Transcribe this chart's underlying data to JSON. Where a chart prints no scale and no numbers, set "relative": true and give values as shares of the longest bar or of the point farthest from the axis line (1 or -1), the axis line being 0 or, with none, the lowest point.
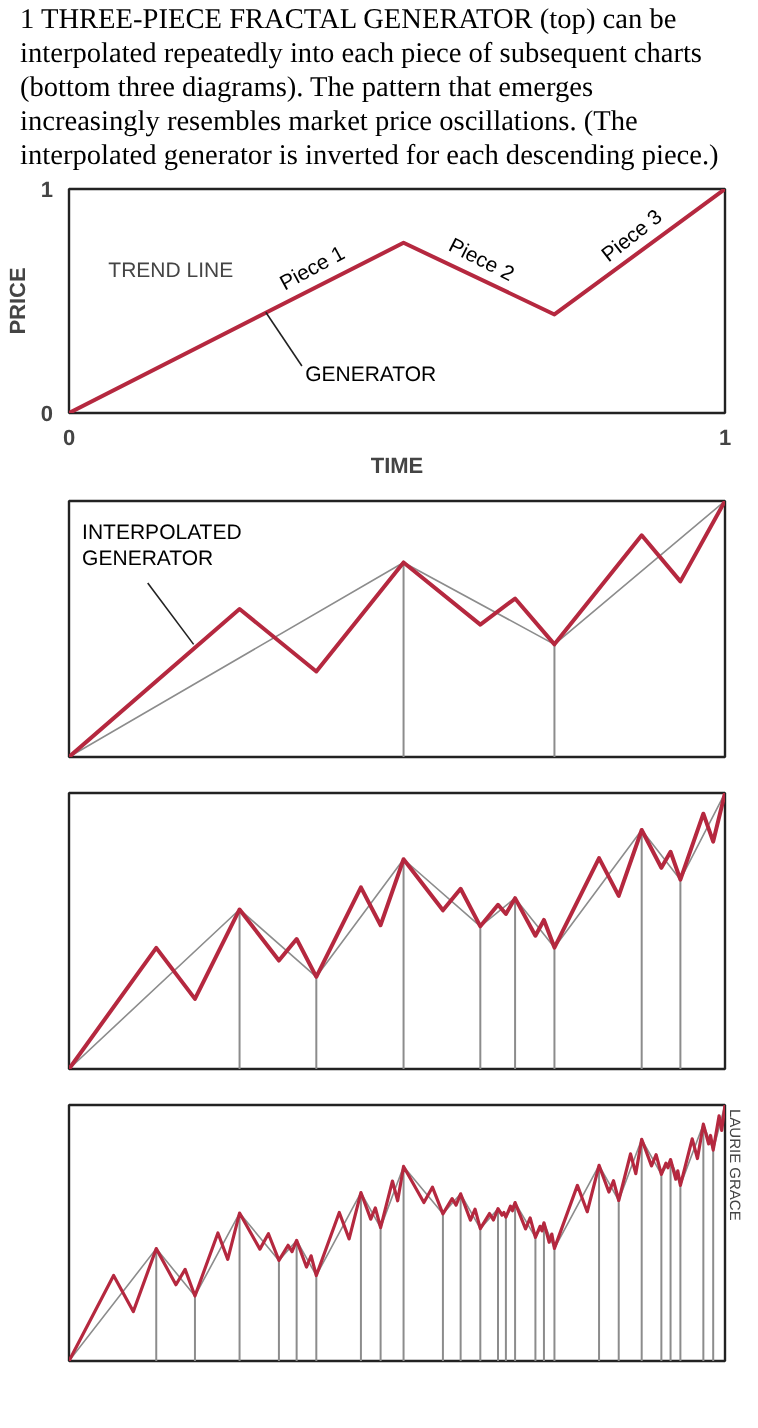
{
  "chart_data": [
    {
      "type": "line",
      "title": "1 THREE-PIECE FRACTAL GENERATOR (top) can be interpolated repeatedly into each piece of subsequent charts (bottom three diagrams). The pattern that emerges increasingly resembles market price oscillations. (The interpolated generator is inverted for each descending piece.)",
      "xlabel": "TIME",
      "ylabel": "PRICE",
      "x": [
        0,
        0.51,
        0.74,
        1
      ],
      "series": [
        {
          "color": "#b5283f",
          "values": [
            0,
            0.76,
            0.44,
            1
          ]
        }
      ],
      "xlim": [
        0,
        1
      ],
      "ylim": [
        0,
        1
      ],
      "xticks": [
        0,
        1
      ],
      "yticks": [
        0,
        1
      ],
      "annotations": [
        "TREND LINE",
        {
          "text": "GENERATOR",
          "x": 0.3,
          "y": 0.45
        },
        {
          "text": "Piece 1",
          "x": 0.38,
          "y": 0.57
        },
        {
          "text": "Piece 2",
          "x": 0.62,
          "y": 0.607
        },
        {
          "text": "Piece 3",
          "x": 0.87,
          "y": 0.72
        }
      ]
    },
    {
      "type": "line",
      "relative": true,
      "tick_labels": false,
      "xlim": [
        0,
        1
      ],
      "series": [
        {
          "color": "#b5283f",
          "x": [
            0,
            0.26,
            0.377,
            0.51,
            0.627,
            0.68,
            0.74,
            0.873,
            0.932,
            1
          ],
          "values": [
            0,
            0.578,
            0.334,
            0.76,
            0.517,
            0.619,
            0.44,
            0.866,
            0.686,
            1
          ]
        },
        {
          "color": "#8c8c8c",
          "x": [
            0,
            0.51,
            0.74,
            1
          ],
          "values": [
            0,
            0.76,
            0.44,
            1
          ]
        }
      ],
      "ref_lines": [
        {
          "axis": "x",
          "value": 0.51,
          "color": "#8c8c8c"
        },
        {
          "axis": "x",
          "value": 0.74,
          "color": "#8c8c8c"
        }
      ],
      "annotations": [
        {
          "text": "INTERPOLATED\nGENERATOR",
          "x": 0.19,
          "y": 0.44
        }
      ]
    },
    {
      "type": "line",
      "relative": true,
      "tick_labels": false,
      "xlim": [
        0,
        1
      ],
      "series": [
        {
          "color": "#b5283f",
          "x": [
            0,
            0.133,
            0.192,
            0.26,
            0.32,
            0.347,
            0.377,
            0.445,
            0.475,
            0.51,
            0.57,
            0.597,
            0.627,
            0.654,
            0.666,
            0.68,
            0.711,
            0.724,
            0.74,
            0.808,
            0.838,
            0.873,
            0.903,
            0.917,
            0.932,
            0.967,
            0.982,
            1
          ],
          "values": [
            0,
            0.439,
            0.254,
            0.578,
            0.393,
            0.471,
            0.334,
            0.658,
            0.521,
            0.76,
            0.575,
            0.653,
            0.517,
            0.595,
            0.562,
            0.619,
            0.483,
            0.54,
            0.44,
            0.764,
            0.627,
            0.866,
            0.729,
            0.787,
            0.686,
            0.925,
            0.824,
            1
          ]
        },
        {
          "color": "#8c8c8c",
          "x": [
            0,
            0.26,
            0.377,
            0.51,
            0.627,
            0.68,
            0.74,
            0.873,
            0.932,
            1
          ],
          "values": [
            0,
            0.578,
            0.334,
            0.76,
            0.517,
            0.619,
            0.44,
            0.866,
            0.686,
            1
          ]
        }
      ],
      "ref_lines": [
        {
          "axis": "x",
          "value": 0.26,
          "color": "#8c8c8c"
        },
        {
          "axis": "x",
          "value": 0.377,
          "color": "#8c8c8c"
        },
        {
          "axis": "x",
          "value": 0.51,
          "color": "#8c8c8c"
        },
        {
          "axis": "x",
          "value": 0.627,
          "color": "#8c8c8c"
        },
        {
          "axis": "x",
          "value": 0.68,
          "color": "#8c8c8c"
        },
        {
          "axis": "x",
          "value": 0.74,
          "color": "#8c8c8c"
        },
        {
          "axis": "x",
          "value": 0.873,
          "color": "#8c8c8c"
        },
        {
          "axis": "x",
          "value": 0.932,
          "color": "#8c8c8c"
        }
      ]
    },
    {
      "type": "line",
      "relative": true,
      "tick_labels": false,
      "xlim": [
        0,
        1
      ],
      "series": [
        {
          "color": "#b5283f",
          "x": [
            0,
            0.068,
            0.098,
            0.133,
            0.163,
            0.177,
            0.192,
            0.227,
            0.242,
            0.26,
            0.291,
            0.304,
            0.32,
            0.334,
            0.34,
            0.347,
            0.362,
            0.369,
            0.377,
            0.412,
            0.427,
            0.445,
            0.46,
            0.467,
            0.475,
            0.493,
            0.501,
            0.51,
            0.541,
            0.554,
            0.57,
            0.584,
            0.59,
            0.597,
            0.612,
            0.619,
            0.627,
            0.641,
            0.647,
            0.654,
            0.66,
            0.663,
            0.666,
            0.673,
            0.676,
            0.68,
            0.696,
            0.703,
            0.711,
            0.718,
            0.721,
            0.724,
            0.732,
            0.736,
            0.74,
            0.775,
            0.79,
            0.808,
            0.823,
            0.83,
            0.838,
            0.856,
            0.864,
            0.873,
            0.888,
            0.895,
            0.903,
            0.91,
            0.913,
            0.917,
            0.925,
            0.928,
            0.932,
            0.95,
            0.958,
            0.967,
            0.975,
            0.978,
            0.982,
            0.991,
            0.995,
            1
          ],
          "values": [
            0,
            0.334,
            0.193,
            0.439,
            0.298,
            0.358,
            0.254,
            0.5,
            0.397,
            0.578,
            0.437,
            0.497,
            0.393,
            0.452,
            0.427,
            0.471,
            0.367,
            0.411,
            0.334,
            0.58,
            0.477,
            0.658,
            0.554,
            0.598,
            0.521,
            0.703,
            0.626,
            0.76,
            0.619,
            0.679,
            0.575,
            0.634,
            0.609,
            0.653,
            0.55,
            0.593,
            0.517,
            0.576,
            0.551,
            0.595,
            0.57,
            0.58,
            0.562,
            0.605,
            0.587,
            0.619,
            0.516,
            0.559,
            0.483,
            0.526,
            0.508,
            0.54,
            0.464,
            0.496,
            0.44,
            0.686,
            0.583,
            0.764,
            0.66,
            0.704,
            0.627,
            0.809,
            0.732,
            0.866,
            0.762,
            0.806,
            0.729,
            0.773,
            0.755,
            0.787,
            0.71,
            0.743,
            0.686,
            0.868,
            0.791,
            0.925,
            0.848,
            0.881,
            0.824,
            0.958,
            0.901,
            1
          ]
        },
        {
          "color": "#8c8c8c",
          "x": [
            0,
            0.133,
            0.192,
            0.26,
            0.32,
            0.347,
            0.377,
            0.445,
            0.475,
            0.51,
            0.57,
            0.597,
            0.627,
            0.654,
            0.666,
            0.68,
            0.711,
            0.724,
            0.74,
            0.808,
            0.838,
            0.873,
            0.903,
            0.917,
            0.932,
            0.967,
            0.982,
            1
          ],
          "values": [
            0,
            0.439,
            0.254,
            0.578,
            0.393,
            0.471,
            0.334,
            0.658,
            0.521,
            0.76,
            0.575,
            0.653,
            0.517,
            0.595,
            0.562,
            0.619,
            0.483,
            0.54,
            0.44,
            0.764,
            0.627,
            0.866,
            0.729,
            0.787,
            0.686,
            0.925,
            0.824,
            1
          ]
        }
      ],
      "ref_lines": [
        {
          "axis": "x",
          "value": 0.133,
          "color": "#8c8c8c"
        },
        {
          "axis": "x",
          "value": 0.192,
          "color": "#8c8c8c"
        },
        {
          "axis": "x",
          "value": 0.26,
          "color": "#8c8c8c"
        },
        {
          "axis": "x",
          "value": 0.32,
          "color": "#8c8c8c"
        },
        {
          "axis": "x",
          "value": 0.347,
          "color": "#8c8c8c"
        },
        {
          "axis": "x",
          "value": 0.377,
          "color": "#8c8c8c"
        },
        {
          "axis": "x",
          "value": 0.445,
          "color": "#8c8c8c"
        },
        {
          "axis": "x",
          "value": 0.475,
          "color": "#8c8c8c"
        },
        {
          "axis": "x",
          "value": 0.51,
          "color": "#8c8c8c"
        },
        {
          "axis": "x",
          "value": 0.57,
          "color": "#8c8c8c"
        },
        {
          "axis": "x",
          "value": 0.597,
          "color": "#8c8c8c"
        },
        {
          "axis": "x",
          "value": 0.627,
          "color": "#8c8c8c"
        },
        {
          "axis": "x",
          "value": 0.654,
          "color": "#8c8c8c"
        },
        {
          "axis": "x",
          "value": 0.666,
          "color": "#8c8c8c"
        },
        {
          "axis": "x",
          "value": 0.68,
          "color": "#8c8c8c"
        },
        {
          "axis": "x",
          "value": 0.711,
          "color": "#8c8c8c"
        },
        {
          "axis": "x",
          "value": 0.724,
          "color": "#8c8c8c"
        },
        {
          "axis": "x",
          "value": 0.74,
          "color": "#8c8c8c"
        },
        {
          "axis": "x",
          "value": 0.808,
          "color": "#8c8c8c"
        },
        {
          "axis": "x",
          "value": 0.838,
          "color": "#8c8c8c"
        },
        {
          "axis": "x",
          "value": 0.873,
          "color": "#8c8c8c"
        },
        {
          "axis": "x",
          "value": 0.903,
          "color": "#8c8c8c"
        },
        {
          "axis": "x",
          "value": 0.917,
          "color": "#8c8c8c"
        },
        {
          "axis": "x",
          "value": 0.932,
          "color": "#8c8c8c"
        },
        {
          "axis": "x",
          "value": 0.967,
          "color": "#8c8c8c"
        },
        {
          "axis": "x",
          "value": 0.982,
          "color": "#8c8c8c"
        }
      ],
      "annotations": [
        "LAURIE GRACE"
      ]
    }
  ]
}
